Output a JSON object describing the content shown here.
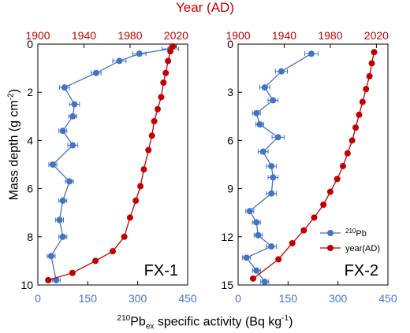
{
  "figure": {
    "top_axis_title": "Year (AD)",
    "y_axis_title_parts": [
      "Mass depth (g cm",
      "-2",
      ")"
    ],
    "x_axis_title_parts": [
      "",
      "210",
      "Pb",
      "ex",
      " specific activity (Bq kg",
      "-1",
      ")"
    ],
    "colors": {
      "pb210": "#4472c4",
      "year": "#c00000",
      "axis": "#000000"
    }
  },
  "chart_data": [
    {
      "type": "scatter",
      "panel_label": "FX-1",
      "y_axis": {
        "label": "Mass depth (g cm-2)",
        "range": [
          10,
          0
        ],
        "ticks": [
          0,
          2,
          4,
          6,
          8,
          10
        ],
        "ticks_text": [
          "0",
          "2",
          "4",
          "6",
          "8",
          "10"
        ]
      },
      "x_axis_bottom": {
        "label": "210Pbex specific activity (Bq kg-1)",
        "range": [
          0,
          450
        ],
        "ticks": [
          0,
          150,
          300,
          450
        ],
        "ticks_text": [
          "0",
          "150",
          "300",
          "450"
        ]
      },
      "x_axis_top": {
        "label": "Year (AD)",
        "range": [
          1900,
          2030
        ],
        "ticks": [
          1900,
          1940,
          1980,
          2020
        ],
        "ticks_text": [
          "1900",
          "1940",
          "1980",
          "2020"
        ]
      },
      "series": [
        {
          "name": "210Pb",
          "axis": "bottom",
          "x": [
            398,
            305,
            245,
            175,
            80,
            110,
            105,
            75,
            105,
            45,
            95,
            75,
            65,
            75,
            40,
            55
          ],
          "y": [
            0.2,
            0.4,
            0.7,
            1.2,
            1.8,
            2.5,
            3.0,
            3.6,
            4.2,
            5.0,
            5.7,
            6.5,
            7.3,
            8.0,
            8.8,
            9.8
          ],
          "x_err": [
            25,
            20,
            20,
            15,
            15,
            15,
            12,
            12,
            15,
            12,
            12,
            12,
            12,
            12,
            12,
            12
          ]
        },
        {
          "name": "year(AD)",
          "axis": "top",
          "x": [
            2017,
            2015,
            2013,
            2011,
            2009,
            2007,
            2004,
            2001,
            1999,
            1996,
            1992,
            1989,
            1985,
            1980,
            1975,
            1965,
            1950,
            1930,
            1909
          ],
          "y": [
            0.1,
            0.3,
            0.7,
            1.2,
            1.6,
            2.2,
            2.7,
            3.2,
            3.8,
            4.4,
            5.2,
            5.9,
            6.5,
            7.2,
            8.0,
            8.6,
            9.0,
            9.5,
            9.8
          ]
        }
      ]
    },
    {
      "type": "scatter",
      "panel_label": "FX-2",
      "y_axis": {
        "label": "Mass depth (g cm-2)",
        "range": [
          15,
          0
        ],
        "ticks": [
          0,
          3,
          6,
          9,
          12,
          15
        ],
        "ticks_text": [
          "0",
          "3",
          "6",
          "9",
          "12",
          "15"
        ]
      },
      "x_axis_bottom": {
        "label": "210Pbex specific activity (Bq kg-1)",
        "range": [
          0,
          450
        ],
        "ticks": [
          0,
          150,
          300,
          450
        ],
        "ticks_text": [
          "0",
          "150",
          "300",
          "450"
        ]
      },
      "x_axis_top": {
        "label": "Year (AD)",
        "range": [
          1900,
          2030
        ],
        "ticks": [
          1900,
          1940,
          1980,
          2020
        ],
        "ticks_text": [
          "1900",
          "1940",
          "1980",
          "2020"
        ]
      },
      "legend": {
        "position": "middle-right",
        "entries": [
          "210Pb",
          "year(AD)"
        ]
      },
      "series": [
        {
          "name": "210Pb",
          "axis": "bottom",
          "x": [
            220,
            130,
            80,
            105,
            55,
            65,
            120,
            75,
            100,
            105,
            100,
            35,
            55,
            60,
            100,
            25,
            55,
            80
          ],
          "y": [
            0.6,
            1.7,
            2.7,
            3.5,
            4.3,
            5.0,
            5.8,
            6.7,
            7.6,
            8.3,
            9.3,
            10.4,
            11.1,
            11.9,
            12.6,
            13.3,
            14.1,
            14.8
          ],
          "x_err": [
            20,
            18,
            15,
            15,
            12,
            12,
            18,
            15,
            15,
            15,
            15,
            12,
            12,
            12,
            15,
            12,
            12,
            12
          ]
        },
        {
          "name": "year(AD)",
          "axis": "top",
          "x": [
            2018,
            2016,
            2014,
            2011,
            2008,
            2005,
            2002,
            1999,
            1995,
            1991,
            1986,
            1980,
            1974,
            1966,
            1957,
            1947,
            1935,
            1913
          ],
          "y": [
            0.5,
            1.2,
            2.0,
            2.8,
            3.6,
            4.4,
            5.2,
            6.0,
            6.8,
            7.6,
            8.4,
            9.2,
            10.0,
            10.8,
            11.6,
            12.4,
            13.4,
            14.6
          ]
        }
      ]
    }
  ]
}
